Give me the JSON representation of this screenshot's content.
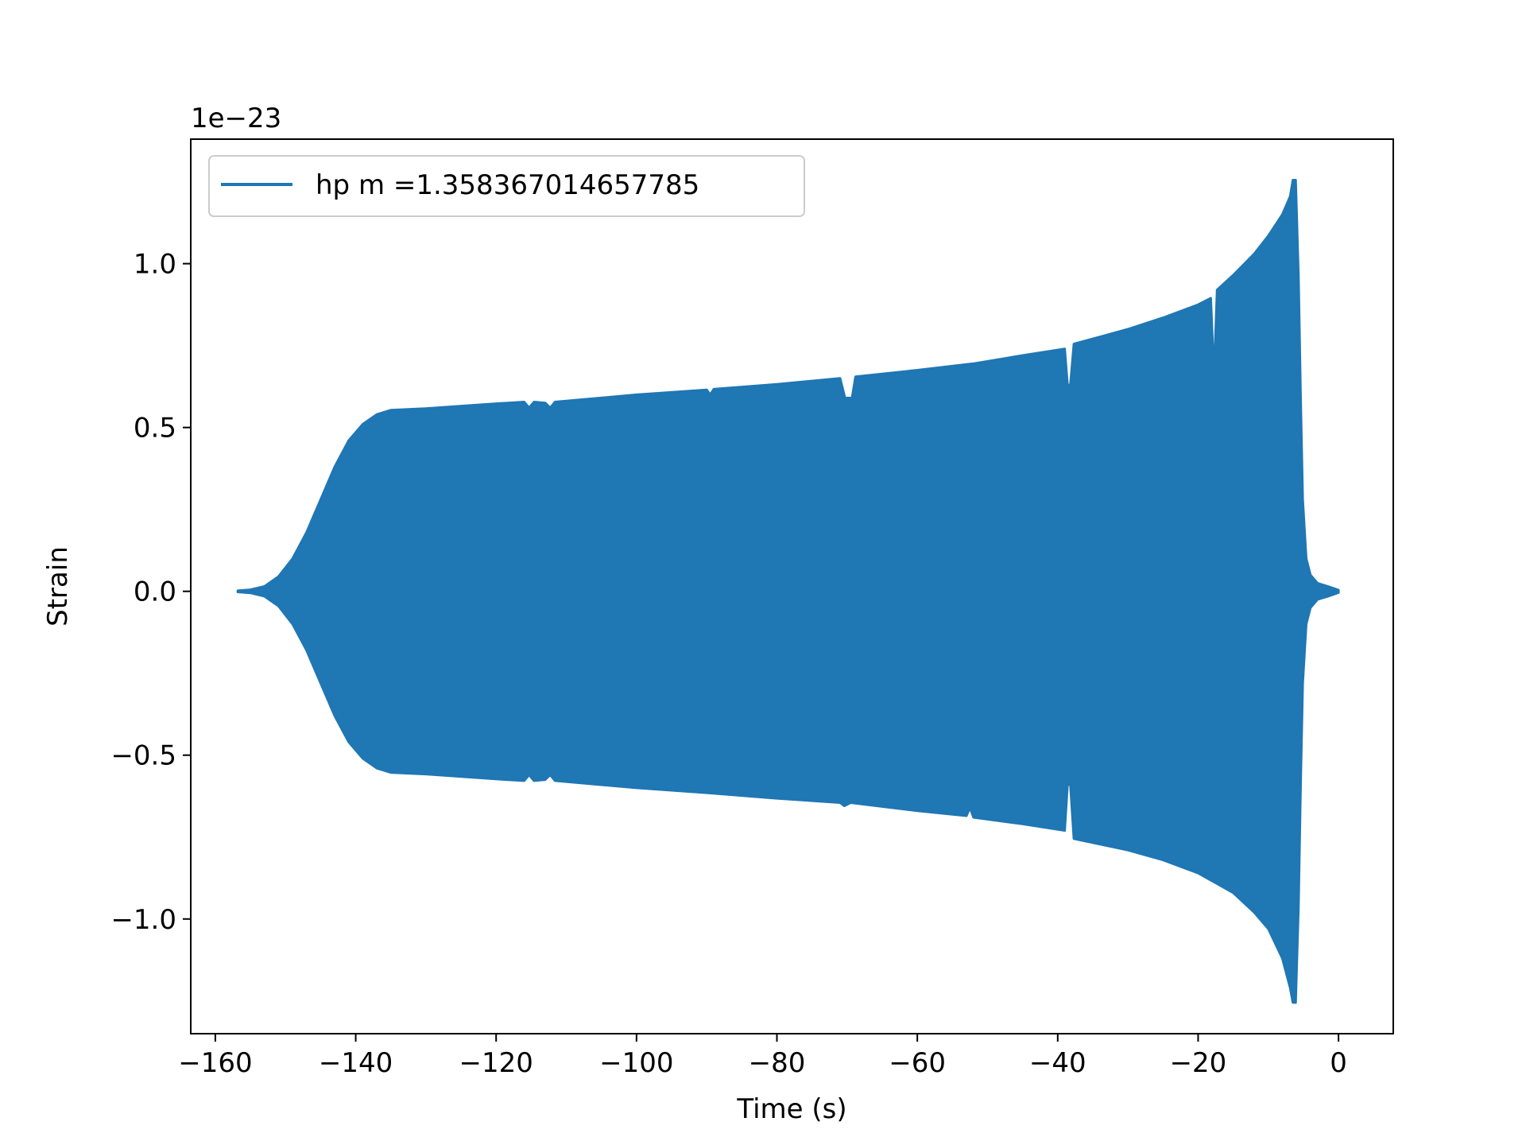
{
  "chart_data": {
    "type": "line",
    "xlabel": "Time (s)",
    "ylabel": "Strain",
    "y_scale_label": "1e−23",
    "xlim": [
      -163.5,
      7.8
    ],
    "ylim": [
      -1.35,
      1.38
    ],
    "xticks": [
      -160,
      -140,
      -120,
      -100,
      -80,
      -60,
      -40,
      -20,
      0
    ],
    "xtick_labels": [
      "−160",
      "−140",
      "−120",
      "−100",
      "−80",
      "−60",
      "−40",
      "−20",
      "0"
    ],
    "yticks": [
      -1.0,
      -0.5,
      0.0,
      0.5,
      1.0
    ],
    "ytick_labels": [
      "−1.0",
      "−0.5",
      "0.0",
      "0.5",
      "1.0"
    ],
    "legend_placement": "upper-left",
    "series": [
      {
        "name": "hp m =1.358367014657785",
        "color": "#1f77b4",
        "envelope_upper": [
          [
            -156.8,
            0.002
          ],
          [
            -155,
            0.005
          ],
          [
            -153,
            0.015
          ],
          [
            -151,
            0.045
          ],
          [
            -149,
            0.1
          ],
          [
            -147,
            0.18
          ],
          [
            -145,
            0.28
          ],
          [
            -143,
            0.38
          ],
          [
            -141,
            0.46
          ],
          [
            -139,
            0.51
          ],
          [
            -137,
            0.54
          ],
          [
            -135,
            0.553
          ],
          [
            -130,
            0.558
          ],
          [
            -120,
            0.573
          ],
          [
            -116,
            0.578
          ],
          [
            -115.3,
            0.56
          ],
          [
            -114.6,
            0.578
          ],
          [
            -113,
            0.575
          ],
          [
            -112.3,
            0.56
          ],
          [
            -111.6,
            0.578
          ],
          [
            -100,
            0.6
          ],
          [
            -90,
            0.615
          ],
          [
            -89.5,
            0.6
          ],
          [
            -89,
            0.617
          ],
          [
            -80,
            0.632
          ],
          [
            -71,
            0.65
          ],
          [
            -70.3,
            0.59
          ],
          [
            -69.3,
            0.59
          ],
          [
            -68.8,
            0.655
          ],
          [
            -60,
            0.675
          ],
          [
            -52,
            0.695
          ],
          [
            -45,
            0.72
          ],
          [
            -39,
            0.74
          ],
          [
            -38.6,
            0.63
          ],
          [
            -38.2,
            0.63
          ],
          [
            -37.7,
            0.755
          ],
          [
            -30,
            0.8
          ],
          [
            -25,
            0.835
          ],
          [
            -20,
            0.875
          ],
          [
            -18.2,
            0.895
          ],
          [
            -17.9,
            0.74
          ],
          [
            -17.6,
            0.74
          ],
          [
            -17.3,
            0.92
          ],
          [
            -15,
            0.965
          ],
          [
            -12,
            1.03
          ],
          [
            -10,
            1.085
          ],
          [
            -8,
            1.15
          ],
          [
            -6.9,
            1.205
          ],
          [
            -6.5,
            1.255
          ],
          [
            -6.1,
            1.255
          ],
          [
            -5.7,
            0.96
          ],
          [
            -5.4,
            0.6
          ],
          [
            -5.1,
            0.28
          ],
          [
            -4.6,
            0.1
          ],
          [
            -4,
            0.05
          ],
          [
            -3,
            0.025
          ],
          [
            -1.5,
            0.015
          ],
          [
            0,
            0.004
          ]
        ],
        "envelope_lower": [
          [
            -156.8,
            -0.002
          ],
          [
            -155,
            -0.005
          ],
          [
            -153,
            -0.015
          ],
          [
            -151,
            -0.045
          ],
          [
            -149,
            -0.1
          ],
          [
            -147,
            -0.18
          ],
          [
            -145,
            -0.28
          ],
          [
            -143,
            -0.38
          ],
          [
            -141,
            -0.46
          ],
          [
            -139,
            -0.51
          ],
          [
            -137,
            -0.54
          ],
          [
            -135,
            -0.553
          ],
          [
            -130,
            -0.558
          ],
          [
            -120,
            -0.573
          ],
          [
            -116,
            -0.578
          ],
          [
            -115.3,
            -0.56
          ],
          [
            -114.6,
            -0.578
          ],
          [
            -113,
            -0.575
          ],
          [
            -112.3,
            -0.56
          ],
          [
            -111.6,
            -0.578
          ],
          [
            -100,
            -0.6
          ],
          [
            -90,
            -0.615
          ],
          [
            -80,
            -0.632
          ],
          [
            -71,
            -0.645
          ],
          [
            -70.4,
            -0.655
          ],
          [
            -69.5,
            -0.645
          ],
          [
            -60,
            -0.67
          ],
          [
            -53,
            -0.685
          ],
          [
            -52.5,
            -0.66
          ],
          [
            -52,
            -0.69
          ],
          [
            -45,
            -0.71
          ],
          [
            -39,
            -0.73
          ],
          [
            -38.6,
            -0.59
          ],
          [
            -38.2,
            -0.59
          ],
          [
            -37.7,
            -0.755
          ],
          [
            -30,
            -0.79
          ],
          [
            -25,
            -0.82
          ],
          [
            -20,
            -0.86
          ],
          [
            -15,
            -0.92
          ],
          [
            -12,
            -0.98
          ],
          [
            -10,
            -1.03
          ],
          [
            -8,
            -1.12
          ],
          [
            -6.9,
            -1.21
          ],
          [
            -6.5,
            -1.255
          ],
          [
            -6.1,
            -1.255
          ],
          [
            -5.7,
            -0.96
          ],
          [
            -5.4,
            -0.6
          ],
          [
            -5.1,
            -0.28
          ],
          [
            -4.6,
            -0.1
          ],
          [
            -4,
            -0.05
          ],
          [
            -3,
            -0.025
          ],
          [
            -1.5,
            -0.015
          ],
          [
            0,
            -0.004
          ]
        ]
      }
    ]
  }
}
